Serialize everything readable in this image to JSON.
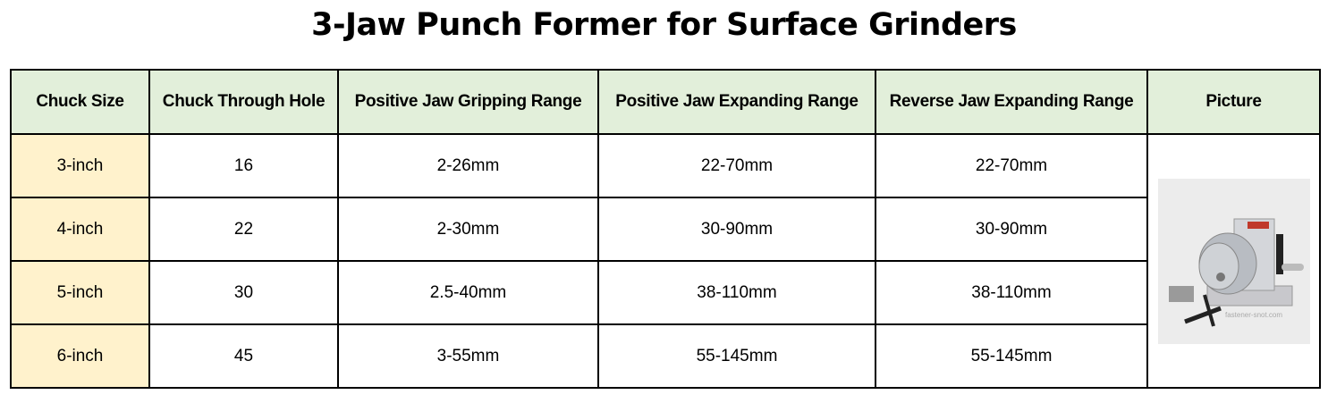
{
  "title": "3-Jaw Punch Former for Surface Grinders",
  "table": {
    "headers": [
      "Chuck Size",
      "Chuck Through Hole",
      "Positive Jaw Gripping Range",
      "Positive Jaw Expanding Range",
      "Reverse Jaw Expanding Range",
      "Picture"
    ],
    "rows": [
      [
        "3-inch",
        "16",
        "2-26mm",
        "22-70mm",
        "22-70mm"
      ],
      [
        "4-inch",
        "22",
        "2-30mm",
        "30-90mm",
        "30-90mm"
      ],
      [
        "5-inch",
        "30",
        "2.5-40mm",
        "38-110mm",
        "38-110mm"
      ],
      [
        "6-inch",
        "45",
        "3-55mm",
        "55-145mm",
        "55-145mm"
      ]
    ],
    "picture_watermark": "www.fastener-snot.com"
  },
  "colors": {
    "header_bg": "#e2efda",
    "size_col_bg": "#fff2cc",
    "border": "#000000"
  }
}
